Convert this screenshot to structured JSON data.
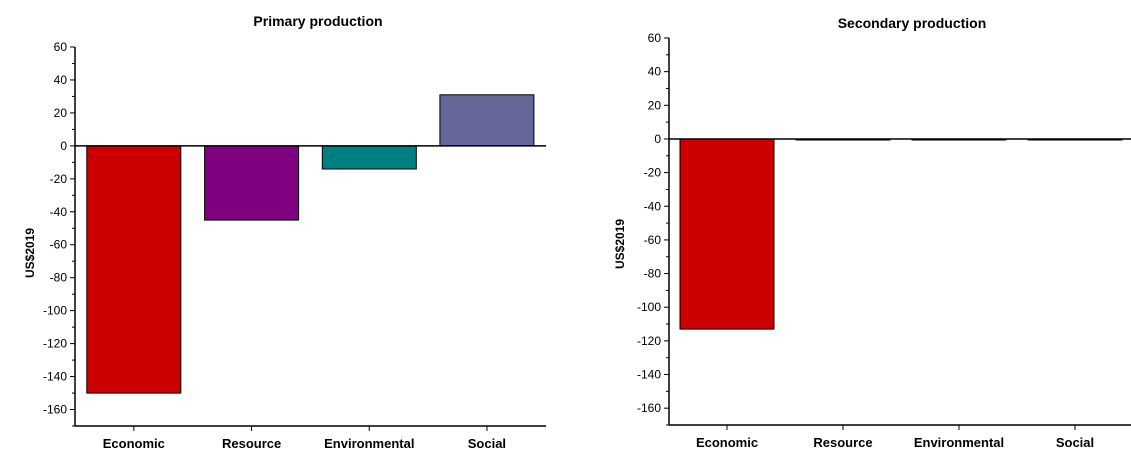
{
  "chart_data": [
    {
      "type": "bar",
      "title": "Primary production",
      "xlabel": "",
      "ylabel": "US$2019",
      "ylim": [
        -170,
        60
      ],
      "yticks": [
        60,
        40,
        20,
        0,
        -20,
        -40,
        -60,
        -80,
        -100,
        -120,
        -140,
        -160
      ],
      "grid": false,
      "categories": [
        "Economic",
        "Resource",
        "Environmental",
        "Social"
      ],
      "values": [
        -150,
        -45,
        -14,
        31
      ],
      "colors": [
        "#cc0000",
        "#800080",
        "#008080",
        "#666699"
      ]
    },
    {
      "type": "bar",
      "title": "Secondary production",
      "xlabel": "",
      "ylabel": "US$2019",
      "ylim": [
        -170,
        60
      ],
      "yticks": [
        60,
        40,
        20,
        0,
        -20,
        -40,
        -60,
        -80,
        -100,
        -120,
        -140,
        -160
      ],
      "grid": false,
      "categories": [
        "Economic",
        "Resource",
        "Environmental",
        "Social"
      ],
      "values": [
        -113,
        -0.5,
        -0.5,
        0
      ],
      "colors": [
        "#cc0000",
        "#800080",
        "#008080",
        "#666699"
      ]
    }
  ]
}
